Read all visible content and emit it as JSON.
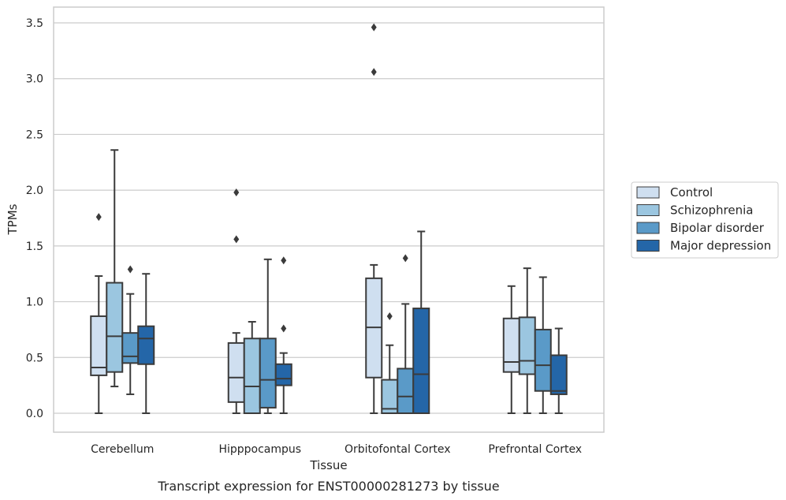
{
  "chart_data": {
    "type": "box",
    "caption": "Transcript expression for ENST00000281273 by tissue",
    "xlabel": "Tissue",
    "ylabel": "TPMs",
    "ylim": [
      -0.17,
      3.64
    ],
    "yticks": [
      "0.0",
      "0.5",
      "1.0",
      "1.5",
      "2.0",
      "2.5",
      "3.0",
      "3.5"
    ],
    "grid": "horizontal",
    "legend_position": "right",
    "categories": [
      "Cerebellum",
      "Hipppocampus",
      "Orbitofontal Cortex",
      "Prefrontal Cortex"
    ],
    "series": [
      {
        "name": "Control",
        "color": "#cfdff0",
        "boxes": [
          {
            "min": 0.0,
            "q1": 0.34,
            "median": 0.41,
            "q3": 0.87,
            "max": 1.23,
            "outliers": [
              1.76
            ]
          },
          {
            "min": 0.0,
            "q1": 0.1,
            "median": 0.32,
            "q3": 0.63,
            "max": 0.72,
            "outliers": [
              1.56,
              1.98
            ]
          },
          {
            "min": 0.0,
            "q1": 0.32,
            "median": 0.77,
            "q3": 1.21,
            "max": 1.33,
            "outliers": [
              3.06,
              3.46
            ]
          },
          {
            "min": 0.0,
            "q1": 0.37,
            "median": 0.46,
            "q3": 0.85,
            "max": 1.14,
            "outliers": []
          }
        ]
      },
      {
        "name": "Schizophrenia",
        "color": "#9bc6e0",
        "boxes": [
          {
            "min": 0.24,
            "q1": 0.37,
            "median": 0.69,
            "q3": 1.17,
            "max": 2.36,
            "outliers": []
          },
          {
            "min": 0.0,
            "q1": 0.0,
            "median": 0.24,
            "q3": 0.67,
            "max": 0.82,
            "outliers": []
          },
          {
            "min": 0.0,
            "q1": 0.0,
            "median": 0.04,
            "q3": 0.3,
            "max": 0.61,
            "outliers": [
              0.87
            ]
          },
          {
            "min": 0.0,
            "q1": 0.35,
            "median": 0.47,
            "q3": 0.86,
            "max": 1.3,
            "outliers": []
          }
        ]
      },
      {
        "name": "Bipolar disorder",
        "color": "#5a9ac8",
        "boxes": [
          {
            "min": 0.17,
            "q1": 0.45,
            "median": 0.51,
            "q3": 0.72,
            "max": 1.07,
            "outliers": [
              1.29
            ]
          },
          {
            "min": 0.0,
            "q1": 0.05,
            "median": 0.3,
            "q3": 0.67,
            "max": 1.38,
            "outliers": []
          },
          {
            "min": 0.0,
            "q1": 0.0,
            "median": 0.15,
            "q3": 0.4,
            "max": 0.98,
            "outliers": [
              1.39
            ]
          },
          {
            "min": 0.0,
            "q1": 0.2,
            "median": 0.43,
            "q3": 0.75,
            "max": 1.22,
            "outliers": []
          }
        ]
      },
      {
        "name": "Major depression",
        "color": "#2466a8",
        "boxes": [
          {
            "min": 0.0,
            "q1": 0.44,
            "median": 0.67,
            "q3": 0.78,
            "max": 1.25,
            "outliers": []
          },
          {
            "min": 0.0,
            "q1": 0.25,
            "median": 0.31,
            "q3": 0.44,
            "max": 0.54,
            "outliers": [
              0.76,
              1.37
            ]
          },
          {
            "min": 0.0,
            "q1": 0.0,
            "median": 0.35,
            "q3": 0.94,
            "max": 1.63,
            "outliers": []
          },
          {
            "min": 0.0,
            "q1": 0.17,
            "median": 0.2,
            "q3": 0.52,
            "max": 0.76,
            "outliers": []
          }
        ]
      }
    ]
  }
}
